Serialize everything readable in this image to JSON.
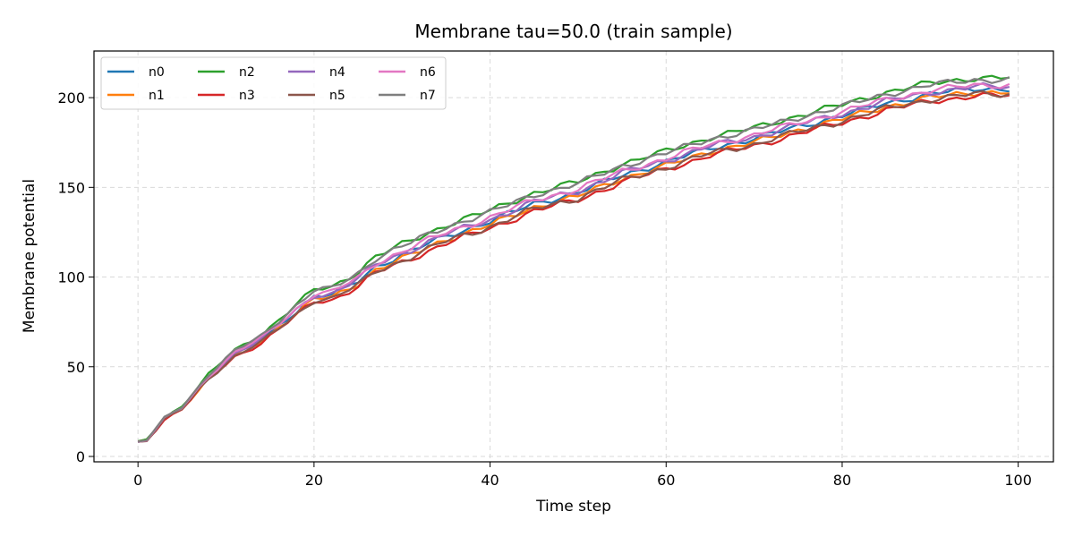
{
  "chart_data": {
    "type": "line",
    "title": "Membrane tau=50.0 (train sample)",
    "xlabel": "Time step",
    "ylabel": "Membrane potential",
    "xlim": [
      -5,
      104
    ],
    "ylim": [
      -3,
      226
    ],
    "xticks": [
      0,
      20,
      40,
      60,
      80,
      100
    ],
    "yticks": [
      0,
      50,
      100,
      150,
      200
    ],
    "grid": true,
    "legend_position": "top-left",
    "legend_columns": 4,
    "anchors": {
      "x": [
        0,
        1,
        3,
        5,
        8,
        11,
        14,
        17,
        20,
        22,
        25,
        27,
        30,
        35,
        40,
        45,
        50,
        55,
        60,
        65,
        70,
        75,
        80,
        85,
        90,
        95,
        99
      ],
      "base": [
        8,
        9,
        21,
        27,
        44,
        57,
        65,
        77,
        89,
        90,
        98,
        106,
        112,
        123,
        131,
        141,
        147,
        157,
        164,
        172,
        177,
        184,
        190,
        197,
        202,
        205,
        205
      ]
    },
    "series": [
      {
        "name": "n0",
        "color": "#1f77b4",
        "offset": 0
      },
      {
        "name": "n1",
        "color": "#ff7f0e",
        "offset": -2
      },
      {
        "name": "n2",
        "color": "#2ca02c",
        "offset": 6
      },
      {
        "name": "n3",
        "color": "#d62728",
        "offset": -4
      },
      {
        "name": "n4",
        "color": "#9467bd",
        "offset": 1
      },
      {
        "name": "n5",
        "color": "#8c564b",
        "offset": -3
      },
      {
        "name": "n6",
        "color": "#e377c2",
        "offset": 2
      },
      {
        "name": "n7",
        "color": "#7f7f7f",
        "offset": 5
      }
    ]
  }
}
